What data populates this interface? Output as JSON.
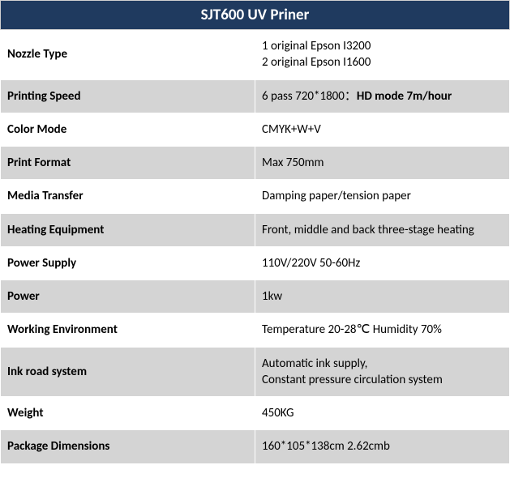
{
  "title": "SJT600 UV Priner",
  "rows": [
    {
      "label": "Nozzle Type",
      "value_lines": [
        "1 original Epson I3200",
        "2 original Epson I1600"
      ],
      "shade": "a"
    },
    {
      "label": "Printing Speed",
      "value_prefix": "6 pass 720*1800：",
      "value_bold": "HD mode 7m/hour",
      "shade": "b"
    },
    {
      "label": "Color Mode",
      "value": "CMYK+W+V",
      "shade": "a"
    },
    {
      "label": "Print Format",
      "value": "Max 750mm",
      "shade": "b"
    },
    {
      "label": "Media Transfer",
      "value": "Damping paper/tension paper",
      "shade": "a"
    },
    {
      "label": "Heating Equipment",
      "value": "Front, middle and back three-stage heating",
      "shade": "b"
    },
    {
      "label": "Power Supply",
      "value": "110V/220V 50-60Hz",
      "shade": "a"
    },
    {
      "label": "Power",
      "value": "1kw",
      "shade": "b"
    },
    {
      "label": "Working Environment",
      "value": "Temperature 20-28℃ Humidity 70%",
      "shade": "a"
    },
    {
      "label": "Ink road system",
      "value_lines": [
        "Automatic ink supply,",
        "Constant pressure circulation system"
      ],
      "shade": "b"
    },
    {
      "label": "Weight",
      "value": "450KG",
      "shade": "a"
    },
    {
      "label": "Package Dimensions",
      "value": "160*105*138cm 2.62cmb",
      "shade": "b"
    }
  ],
  "colors": {
    "title_bg": "#1f3a5f",
    "title_fg": "#ffffff",
    "row_light": "#ffffff",
    "row_dark": "#d4d4d4",
    "border": "#ffffff"
  }
}
